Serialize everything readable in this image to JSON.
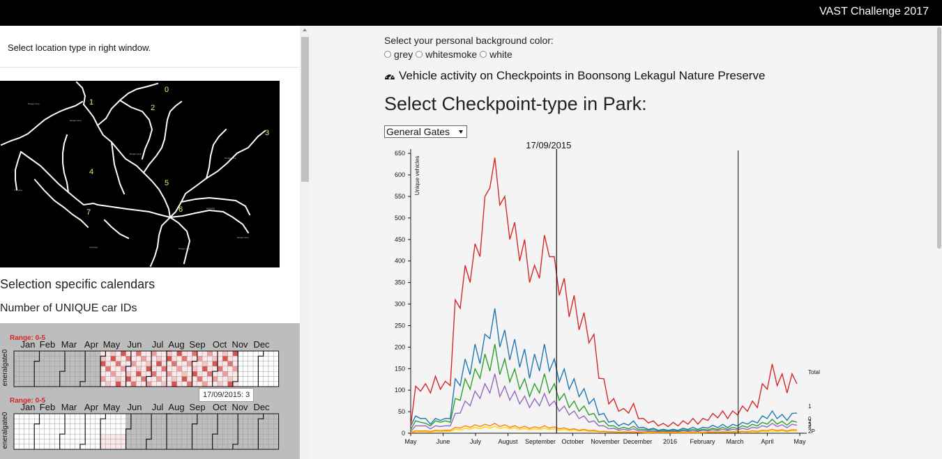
{
  "header": {
    "brand": "VAST Challenge 2017"
  },
  "left_panel": {
    "instruction": "Select location type in right window.",
    "map_labels": [
      "0",
      "1",
      "2",
      "3",
      "4",
      "5",
      "6",
      "7"
    ],
    "section_title": "Selection specific calendars",
    "section_subtitle": "Number of UNIQUE car IDs",
    "calendars": [
      {
        "range_label": "Range: 0-5",
        "row_label": "eneralgate0",
        "months": [
          "Jan",
          "Feb",
          "Mar",
          "Apr",
          "May",
          "Jun",
          "Jul",
          "Aug",
          "Sep",
          "Oct",
          "Nov",
          "Dec"
        ]
      },
      {
        "range_label": "Range: 0-5",
        "row_label": "eneralgate0",
        "months": [
          "Jan",
          "Feb",
          "Mar",
          "Apr",
          "May",
          "Jun",
          "Jul",
          "Aug",
          "Sep",
          "Oct",
          "Nov",
          "Dec"
        ]
      }
    ],
    "tooltip": "17/09/2015: 3"
  },
  "main": {
    "bg_label": "Select your personal background color:",
    "bg_options": [
      "grey",
      "whitesmoke",
      "white"
    ],
    "title": "Vehicle activity on Checkpoints in Boonsong Lekagul Nature Preserve",
    "select_heading": "Select Checkpoint-type in Park:",
    "dropdown_value": "General Gates"
  },
  "icons": {
    "title_icon": "dashboard-icon"
  },
  "colors": {
    "red": "#d62728",
    "blue": "#1f77b4",
    "green": "#2ca02c",
    "purple": "#9467bd",
    "orange": "#ff7f0e",
    "yellow": "#ffd700"
  },
  "chart_data": {
    "type": "line",
    "ylabel": "Unique vehicles",
    "yticks": [
      0,
      50,
      100,
      150,
      200,
      250,
      300,
      350,
      400,
      450,
      500,
      550,
      600,
      650
    ],
    "ylim": [
      0,
      660
    ],
    "xticks": [
      "May",
      "June",
      "July",
      "August",
      "September",
      "October",
      "November",
      "December",
      "2016",
      "February",
      "March",
      "April",
      "May"
    ],
    "annotation_date": "17/09/2015",
    "right_labels": [
      "Total",
      "1",
      "0",
      "2",
      "3",
      "4",
      "2P"
    ],
    "series": [
      {
        "name": "Total",
        "color": "#d62728",
        "values": [
          20,
          95,
          115,
          100,
          110,
          115,
          120,
          105,
          130,
          280,
          320,
          360,
          380,
          410,
          440,
          520,
          600,
          610,
          560,
          520,
          480,
          460,
          430,
          420,
          380,
          360,
          390,
          430,
          440,
          380,
          350,
          330,
          300,
          290,
          270,
          250,
          240,
          200,
          150,
          110,
          80,
          70,
          60,
          50,
          55,
          60,
          40,
          30,
          28,
          25,
          20,
          20,
          18,
          22,
          20,
          25,
          25,
          30,
          25,
          30,
          35,
          40,
          42,
          45,
          40,
          45,
          50,
          55,
          60,
          65,
          70,
          100,
          120,
          140,
          130,
          120,
          110,
          120,
          135
        ]
      },
      {
        "name": "1",
        "color": "#1f77b4",
        "values": [
          20,
          35,
          40,
          30,
          25,
          30,
          35,
          30,
          40,
          110,
          130,
          150,
          160,
          180,
          190,
          200,
          250,
          260,
          230,
          210,
          200,
          190,
          180,
          170,
          150,
          160,
          170,
          180,
          170,
          150,
          140,
          130,
          120,
          110,
          100,
          90,
          80,
          70,
          50,
          40,
          30,
          25,
          20,
          20,
          22,
          25,
          15,
          12,
          10,
          10,
          8,
          8,
          8,
          8,
          8,
          10,
          10,
          12,
          10,
          12,
          14,
          16,
          15,
          18,
          15,
          18,
          20,
          22,
          25,
          25,
          28,
          35,
          40,
          45,
          40,
          38,
          35,
          40,
          55
        ]
      },
      {
        "name": "0",
        "color": "#2ca02c",
        "values": [
          10,
          25,
          30,
          20,
          20,
          25,
          30,
          25,
          30,
          70,
          90,
          110,
          120,
          130,
          150,
          160,
          170,
          180,
          160,
          150,
          140,
          130,
          120,
          110,
          100,
          100,
          110,
          120,
          110,
          100,
          90,
          80,
          70,
          65,
          60,
          55,
          50,
          40,
          30,
          25,
          20,
          15,
          12,
          12,
          12,
          14,
          10,
          8,
          8,
          7,
          6,
          6,
          6,
          6,
          6,
          7,
          7,
          8,
          7,
          8,
          9,
          10,
          10,
          12,
          10,
          12,
          13,
          15,
          16,
          18,
          20,
          22,
          25,
          28,
          25,
          24,
          22,
          25,
          30
        ]
      },
      {
        "name": "2",
        "color": "#9467bd",
        "values": [
          5,
          15,
          20,
          15,
          12,
          15,
          18,
          15,
          20,
          40,
          55,
          65,
          75,
          85,
          95,
          100,
          110,
          120,
          100,
          95,
          90,
          85,
          80,
          75,
          70,
          70,
          75,
          80,
          75,
          65,
          60,
          55,
          50,
          45,
          40,
          35,
          30,
          25,
          20,
          15,
          12,
          10,
          8,
          8,
          8,
          9,
          6,
          5,
          5,
          4,
          4,
          4,
          4,
          4,
          4,
          5,
          5,
          5,
          5,
          6,
          6,
          7,
          7,
          8,
          7,
          8,
          9,
          10,
          10,
          12,
          14,
          15,
          17,
          20,
          18,
          17,
          15,
          18,
          22
        ]
      },
      {
        "name": "3",
        "color": "#ff7f0e",
        "values": [
          2,
          5,
          6,
          5,
          5,
          6,
          7,
          6,
          8,
          12,
          14,
          15,
          16,
          17,
          18,
          18,
          20,
          20,
          18,
          17,
          16,
          15,
          14,
          14,
          13,
          13,
          14,
          15,
          14,
          13,
          12,
          11,
          10,
          9,
          8,
          8,
          7,
          6,
          5,
          4,
          4,
          3,
          3,
          3,
          3,
          3,
          2,
          2,
          2,
          2,
          2,
          2,
          2,
          2,
          2,
          2,
          2,
          2,
          2,
          2,
          3,
          3,
          3,
          3,
          3,
          3,
          4,
          4,
          4,
          5,
          5,
          6,
          7,
          8,
          7,
          7,
          6,
          7,
          9
        ]
      },
      {
        "name": "4",
        "color": "#ffd700",
        "values": [
          1,
          3,
          4,
          3,
          3,
          4,
          4,
          4,
          5,
          8,
          9,
          10,
          11,
          12,
          12,
          13,
          14,
          14,
          13,
          12,
          12,
          11,
          10,
          10,
          9,
          9,
          10,
          10,
          10,
          9,
          8,
          8,
          7,
          7,
          6,
          6,
          5,
          4,
          4,
          3,
          3,
          2,
          2,
          2,
          2,
          2,
          2,
          1,
          1,
          1,
          1,
          1,
          1,
          1,
          1,
          1,
          1,
          1,
          1,
          1,
          2,
          2,
          2,
          2,
          2,
          2,
          2,
          3,
          3,
          3,
          3,
          4,
          4,
          5,
          5,
          5,
          4,
          5,
          6
        ]
      }
    ]
  }
}
